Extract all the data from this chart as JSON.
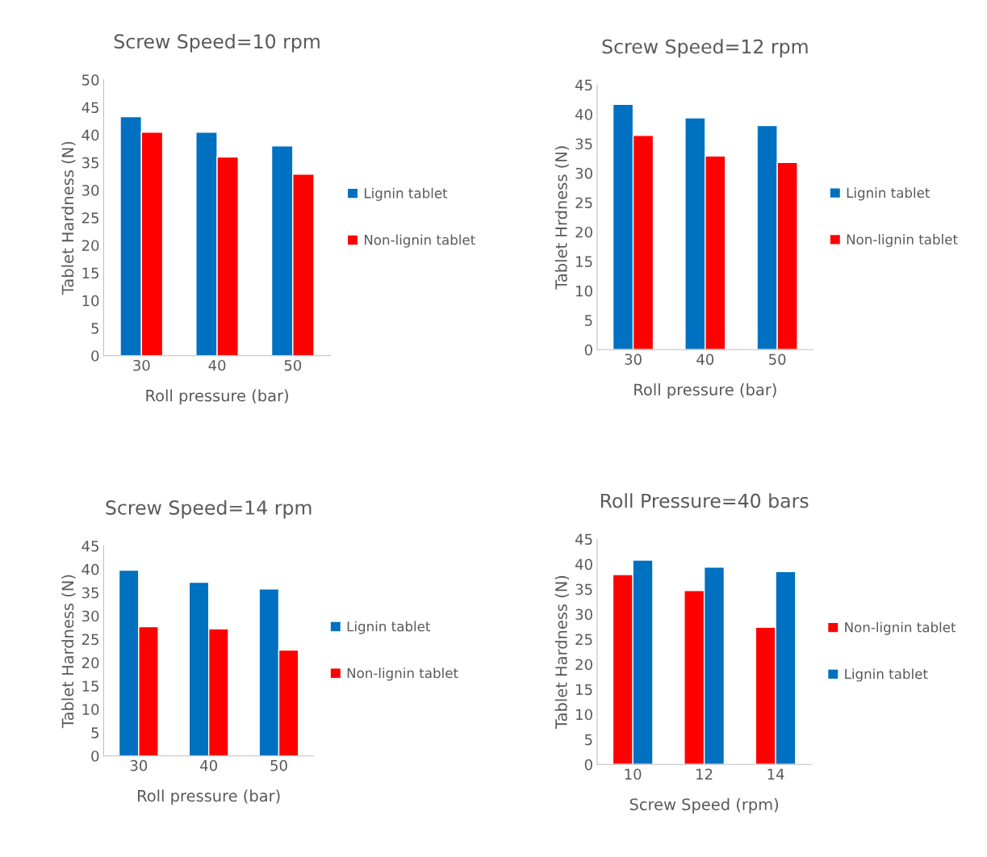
{
  "chart_data": [
    {
      "type": "bar",
      "title": "Screw Speed=10 rpm",
      "xlabel": "Roll pressure (bar)",
      "ylabel": "Tablet Hardness (N)",
      "categories": [
        "30",
        "40",
        "50"
      ],
      "ylim": [
        0,
        50
      ],
      "yticks": [
        0,
        5,
        10,
        15,
        20,
        25,
        30,
        35,
        40,
        45,
        50
      ],
      "grid": false,
      "legend": "right",
      "series": [
        {
          "name": "Lignin tablet",
          "color": "#0070c0",
          "values": [
            43.3,
            40.5,
            38.0
          ]
        },
        {
          "name": "Non-lignin tablet",
          "color": "#ff0000",
          "values": [
            40.5,
            36.0,
            32.9
          ]
        }
      ]
    },
    {
      "type": "bar",
      "title": "Screw Speed=12 rpm",
      "xlabel": "Roll pressure (bar)",
      "ylabel": "Tablet Hrdness (N)",
      "categories": [
        "30",
        "40",
        "50"
      ],
      "ylim": [
        0,
        45
      ],
      "yticks": [
        0,
        5,
        10,
        15,
        20,
        25,
        30,
        35,
        40,
        45
      ],
      "grid": false,
      "legend": "right",
      "series": [
        {
          "name": "Lignin tablet",
          "color": "#0070c0",
          "values": [
            41.7,
            39.4,
            38.1
          ]
        },
        {
          "name": "Non-lignin tablet",
          "color": "#ff0000",
          "values": [
            36.4,
            32.9,
            31.8
          ]
        }
      ]
    },
    {
      "type": "bar",
      "title": "Screw Speed=14 rpm",
      "xlabel": "Roll pressure (bar)",
      "ylabel": "Tablet Hardness (N)",
      "categories": [
        "30",
        "40",
        "50"
      ],
      "ylim": [
        0,
        45
      ],
      "yticks": [
        0,
        5,
        10,
        15,
        20,
        25,
        30,
        35,
        40,
        45
      ],
      "grid": false,
      "legend": "right",
      "series": [
        {
          "name": "Lignin tablet",
          "color": "#0070c0",
          "values": [
            39.8,
            37.2,
            35.8
          ]
        },
        {
          "name": "Non-lignin tablet",
          "color": "#ff0000",
          "values": [
            27.7,
            27.2,
            22.7
          ]
        }
      ]
    },
    {
      "type": "bar",
      "title": "Roll Pressure=40 bars",
      "xlabel": "Screw Speed (rpm)",
      "ylabel": "Tablet Hardness (N)",
      "categories": [
        "10",
        "12",
        "14"
      ],
      "ylim": [
        0,
        45
      ],
      "yticks": [
        0,
        5,
        10,
        15,
        20,
        25,
        30,
        35,
        40,
        45
      ],
      "grid": false,
      "legend": "right",
      "series": [
        {
          "name": "Non-lignin tablet",
          "color": "#ff0000",
          "values": [
            37.9,
            34.7,
            27.4
          ]
        },
        {
          "name": "Lignin tablet",
          "color": "#0070c0",
          "values": [
            40.8,
            39.4,
            38.5
          ]
        }
      ]
    }
  ]
}
